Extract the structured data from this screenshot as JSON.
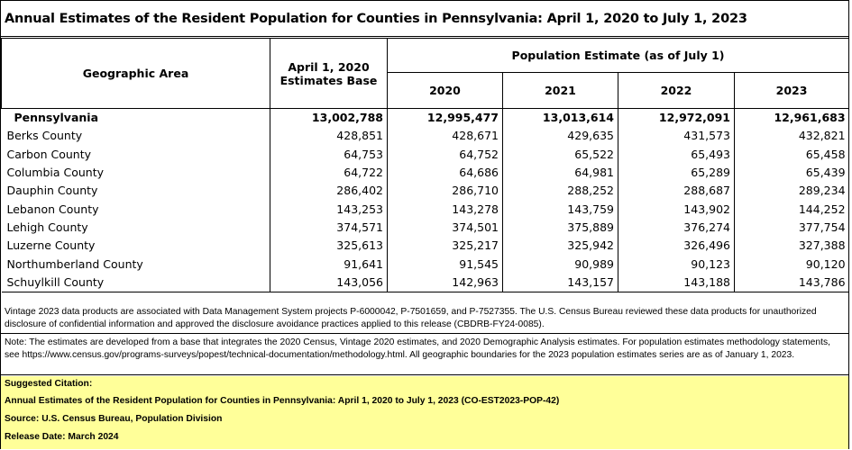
{
  "title": "Annual Estimates of the Resident Population for Counties in Pennsylvania: April 1, 2020 to July 1, 2023",
  "headers": {
    "geo": "Geographic Area",
    "base_line1": "April 1, 2020",
    "base_line2": "Estimates Base",
    "estimate_group": "Population Estimate (as of July 1)",
    "years": [
      "2020",
      "2021",
      "2022",
      "2023"
    ]
  },
  "rows": [
    {
      "area": "Pennsylvania",
      "base": "13,002,788",
      "y2020": "12,995,477",
      "y2021": "13,013,614",
      "y2022": "12,972,091",
      "y2023": "12,961,683"
    },
    {
      "area": "Berks County",
      "base": "428,851",
      "y2020": "428,671",
      "y2021": "429,635",
      "y2022": "431,573",
      "y2023": "432,821"
    },
    {
      "area": "Carbon County",
      "base": "64,753",
      "y2020": "64,752",
      "y2021": "65,522",
      "y2022": "65,493",
      "y2023": "65,458"
    },
    {
      "area": "Columbia County",
      "base": "64,722",
      "y2020": "64,686",
      "y2021": "64,981",
      "y2022": "65,289",
      "y2023": "65,439"
    },
    {
      "area": "Dauphin County",
      "base": "286,402",
      "y2020": "286,710",
      "y2021": "288,252",
      "y2022": "288,687",
      "y2023": "289,234"
    },
    {
      "area": "Lebanon County",
      "base": "143,253",
      "y2020": "143,278",
      "y2021": "143,759",
      "y2022": "143,902",
      "y2023": "144,252"
    },
    {
      "area": "Lehigh County",
      "base": "374,571",
      "y2020": "374,501",
      "y2021": "375,889",
      "y2022": "376,274",
      "y2023": "377,754"
    },
    {
      "area": "Luzerne County",
      "base": "325,613",
      "y2020": "325,217",
      "y2021": "325,942",
      "y2022": "326,496",
      "y2023": "327,388"
    },
    {
      "area": "Northumberland County",
      "base": "91,641",
      "y2020": "91,545",
      "y2021": "90,989",
      "y2022": "90,123",
      "y2023": "90,120"
    },
    {
      "area": "Schuylkill County",
      "base": "143,056",
      "y2020": "142,963",
      "y2021": "143,157",
      "y2022": "143,188",
      "y2023": "143,786"
    }
  ],
  "vintage_note": "Vintage 2023 data products are associated with Data Management System projects P-6000042, P-7501659, and P-7527355. The U.S. Census Bureau reviewed these data products for unauthorized disclosure of confidential information and approved the disclosure avoidance practices applied to this release (CBDRB-FY24-0085).",
  "method_note": "Note: The estimates are developed from a base that integrates the 2020 Census, Vintage 2020 estimates, and 2020 Demographic Analysis estimates.  For population estimates methodology statements, see https://www.census.gov/programs-surveys/popest/technical-documentation/methodology.html. All geographic boundaries for the 2023 population estimates series are as of January 1, 2023.",
  "citation": {
    "heading": "Suggested Citation:",
    "title": "Annual Estimates of the Resident Population for Counties in Pennsylvania: April 1, 2020 to July 1, 2023 (CO-EST2023-POP-42)",
    "source": "Source: U.S. Census Bureau, Population Division",
    "release": "Release Date: March 2024"
  },
  "colors": {
    "citation_bg": "#ffff99",
    "border": "#000000"
  }
}
